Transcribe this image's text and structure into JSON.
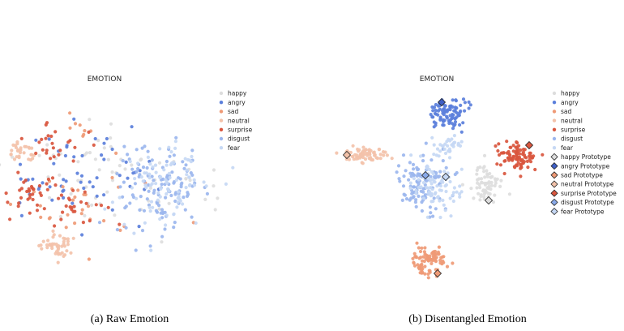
{
  "chart_data": [
    {
      "type": "scatter",
      "title": "EMOTION",
      "caption": "(a) Raw Emotion",
      "legend": {
        "placement": "upper-right",
        "entries": [
          "happy",
          "angry",
          "sad",
          "neutral",
          "surprise",
          "disgust",
          "fear"
        ]
      },
      "series": [
        {
          "name": "happy",
          "color": "#dddddd",
          "clusters": [
            {
              "cx": 95,
              "cy": 215,
              "sx": 45,
              "sy": 35,
              "n": 40
            },
            {
              "cx": 200,
              "cy": 235,
              "sx": 35,
              "sy": 25,
              "n": 25
            }
          ]
        },
        {
          "name": "angry",
          "color": "#5b7fdb",
          "clusters": [
            {
              "cx": 80,
              "cy": 220,
              "sx": 45,
              "sy": 35,
              "n": 50
            },
            {
              "cx": 165,
              "cy": 210,
              "sx": 15,
              "sy": 15,
              "n": 10
            }
          ]
        },
        {
          "name": "sad",
          "color": "#ef9a76",
          "clusters": [
            {
              "cx": 110,
              "cy": 255,
              "sx": 40,
              "sy": 25,
              "n": 30
            },
            {
              "cx": 100,
              "cy": 160,
              "sx": 12,
              "sy": 8,
              "n": 8
            }
          ]
        },
        {
          "name": "neutral",
          "color": "#f3c2aa",
          "clusters": [
            {
              "cx": 25,
              "cy": 188,
              "sx": 10,
              "sy": 7,
              "n": 30
            },
            {
              "cx": 73,
              "cy": 302,
              "sx": 10,
              "sy": 8,
              "n": 45
            }
          ]
        },
        {
          "name": "surprise",
          "color": "#d9563e",
          "clusters": [
            {
              "cx": 40,
              "cy": 240,
              "sx": 12,
              "sy": 12,
              "n": 30
            },
            {
              "cx": 70,
              "cy": 175,
              "sx": 18,
              "sy": 12,
              "n": 25
            },
            {
              "cx": 85,
              "cy": 255,
              "sx": 30,
              "sy": 20,
              "n": 30
            }
          ]
        },
        {
          "name": "disgust",
          "color": "#9bb6ee",
          "clusters": [
            {
              "cx": 200,
              "cy": 230,
              "sx": 30,
              "sy": 28,
              "n": 120
            }
          ]
        },
        {
          "name": "fear",
          "color": "#c6d8f4",
          "clusters": [
            {
              "cx": 205,
              "cy": 230,
              "sx": 28,
              "sy": 26,
              "n": 90
            }
          ]
        }
      ]
    },
    {
      "type": "scatter",
      "title": "EMOTION",
      "caption": "(b) Disentangled Emotion",
      "legend": {
        "placement": "upper-right",
        "entries": [
          "happy",
          "angry",
          "sad",
          "neutral",
          "surprise",
          "disgust",
          "fear",
          "happy Prototype",
          "angry Prototype",
          "sad Prototype",
          "neutral Prototype",
          "surprise Prototype",
          "disgust Prototype",
          "fear Prototype"
        ]
      },
      "series": [
        {
          "name": "happy",
          "color": "#dddddd",
          "clusters": [
            {
              "cx": 600,
              "cy": 228,
              "sx": 10,
              "sy": 11,
              "n": 70
            }
          ]
        },
        {
          "name": "angry",
          "color": "#5b7fdb",
          "clusters": [
            {
              "cx": 553,
              "cy": 140,
              "sx": 12,
              "sy": 9,
              "n": 90
            }
          ]
        },
        {
          "name": "sad",
          "color": "#ef9a76",
          "clusters": [
            {
              "cx": 530,
              "cy": 322,
              "sx": 10,
              "sy": 9,
              "n": 90
            }
          ]
        },
        {
          "name": "neutral",
          "color": "#f3c2aa",
          "clusters": [
            {
              "cx": 450,
              "cy": 191,
              "sx": 15,
              "sy": 4,
              "n": 80
            }
          ]
        },
        {
          "name": "surprise",
          "color": "#d9563e",
          "clusters": [
            {
              "cx": 638,
              "cy": 192,
              "sx": 12,
              "sy": 9,
              "n": 90
            }
          ]
        },
        {
          "name": "disgust",
          "color": "#9bb6ee",
          "clusters": [
            {
              "cx": 520,
              "cy": 225,
              "sx": 15,
              "sy": 18,
              "n": 110
            }
          ]
        },
        {
          "name": "fear",
          "color": "#c6d8f4",
          "clusters": [
            {
              "cx": 540,
              "cy": 230,
              "sx": 15,
              "sy": 17,
              "n": 80
            },
            {
              "cx": 553,
              "cy": 180,
              "sx": 8,
              "sy": 6,
              "n": 30
            }
          ]
        }
      ],
      "prototypes": [
        {
          "name": "happy Prototype",
          "color": "#dddddd",
          "x": 603,
          "y": 247
        },
        {
          "name": "angry Prototype",
          "color": "#3f5fc4",
          "x": 545,
          "y": 126
        },
        {
          "name": "sad Prototype",
          "color": "#ef9a76",
          "x": 540,
          "y": 337
        },
        {
          "name": "neutral Prototype",
          "color": "#f3c2aa",
          "x": 428,
          "y": 191
        },
        {
          "name": "surprise Prototype",
          "color": "#d9563e",
          "x": 653,
          "y": 179
        },
        {
          "name": "disgust Prototype",
          "color": "#8aaae9",
          "x": 525,
          "y": 216
        },
        {
          "name": "fear Prototype",
          "color": "#c6d8f4",
          "x": 550,
          "y": 218
        }
      ]
    }
  ]
}
